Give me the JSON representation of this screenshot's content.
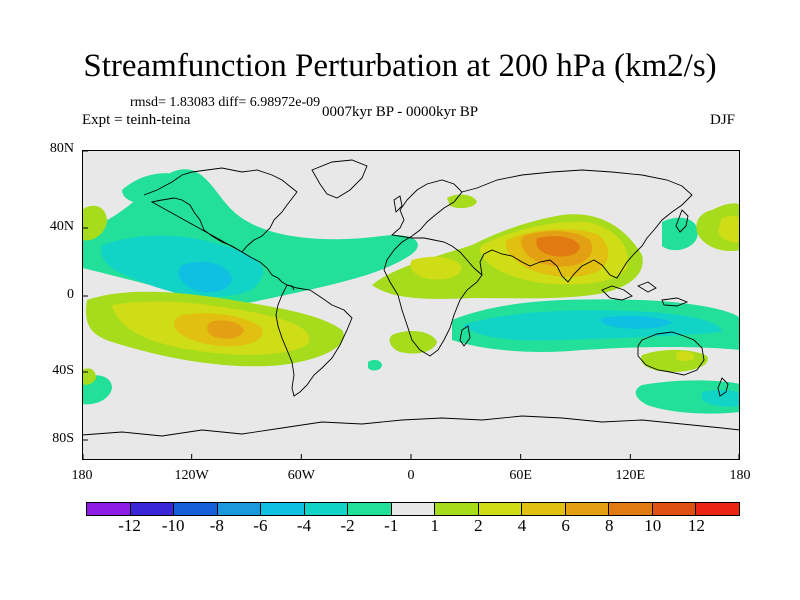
{
  "title": "Streamfunction Perturbation at 200 hPa (km2/s)",
  "stats": "rmsd= 1.83083 diff= 6.98972e-09",
  "period": "0007kyr BP - 0000kyr BP",
  "experiment": "Expt = teinh-teina",
  "season": "DJF",
  "map": {
    "lat_ticks": [
      "80N",
      "40N",
      "0",
      "40S",
      "80S"
    ],
    "lon_ticks": [
      "180",
      "120W",
      "60W",
      "0",
      "60E",
      "120E",
      "180"
    ],
    "background_color": "#e8e8e8",
    "coastline_color": "#000000"
  },
  "colorbar": {
    "colors": [
      "#8c1be6",
      "#3a28d8",
      "#1560d8",
      "#1c98de",
      "#10c0e2",
      "#12d4c6",
      "#22e09a",
      "#e8e8e8",
      "#a6dc1c",
      "#cedd16",
      "#e2c012",
      "#e2a012",
      "#e27a12",
      "#e05010",
      "#ea2612"
    ],
    "labels": [
      "-12",
      "-10",
      "-8",
      "-6",
      "-4",
      "-2",
      "-1",
      "1",
      "2",
      "4",
      "6",
      "8",
      "10",
      "12"
    ]
  }
}
